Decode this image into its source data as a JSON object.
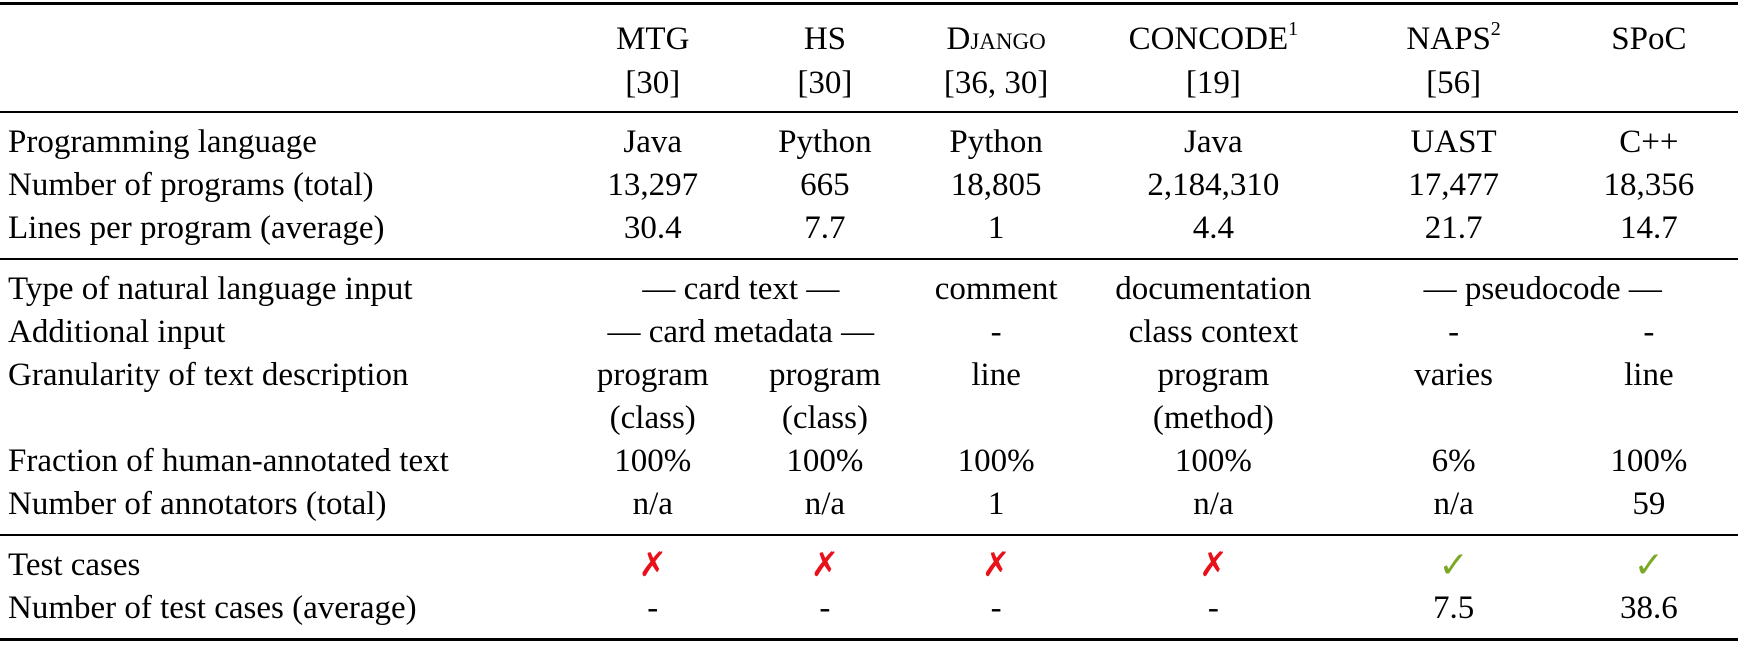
{
  "columns": [
    {
      "name": "MTG",
      "ref": "[30]",
      "sup": ""
    },
    {
      "name": "HS",
      "ref": "[30]",
      "sup": ""
    },
    {
      "name": "Django",
      "ref": "[36, 30]",
      "sup": ""
    },
    {
      "name": "CONCODE",
      "ref": "[19]",
      "sup": "1"
    },
    {
      "name": "NAPS",
      "ref": "[56]",
      "sup": "2"
    },
    {
      "name": "SPoC",
      "ref": "",
      "sup": ""
    }
  ],
  "rows": {
    "lang": {
      "label": "Programming language",
      "values": [
        "Java",
        "Python",
        "Python",
        "Java",
        "UAST",
        "C++"
      ]
    },
    "num_programs": {
      "label": "Number of programs (total)",
      "values": [
        "13,297",
        "665",
        "18,805",
        "2,184,310",
        "17,477",
        "18,356"
      ]
    },
    "lines": {
      "label": "Lines per program (average)",
      "values": [
        "30.4",
        "7.7",
        "1",
        "4.4",
        "21.7",
        "14.7"
      ]
    },
    "nl_input": {
      "label": "Type of natural language input",
      "mtg_hs": "— card text —",
      "django": "comment",
      "concode": "documentation",
      "naps_spoc": "— pseudocode —"
    },
    "additional": {
      "label": "Additional input",
      "mtg_hs": "— card metadata —",
      "django": "-",
      "concode": "class context",
      "naps": "-",
      "spoc": "-"
    },
    "granularity": {
      "label": "Granularity of text description",
      "values_line1": [
        "program",
        "program",
        "line",
        "program",
        "varies",
        "line"
      ],
      "values_line2": [
        "(class)",
        "(class)",
        "",
        "(method)",
        "",
        ""
      ]
    },
    "fraction": {
      "label": "Fraction of human-annotated text",
      "values": [
        "100%",
        "100%",
        "100%",
        "100%",
        "6%",
        "100%"
      ]
    },
    "annotators": {
      "label": "Number of annotators (total)",
      "values": [
        "n/a",
        "n/a",
        "1",
        "n/a",
        "n/a",
        "59"
      ]
    },
    "test_cases": {
      "label": "Test cases",
      "values": [
        "✗",
        "✗",
        "✗",
        "✗",
        "✓",
        "✓"
      ]
    },
    "num_tests": {
      "label": "Number of test cases (average)",
      "values": [
        "-",
        "-",
        "-",
        "-",
        "7.5",
        "38.6"
      ]
    }
  },
  "colors": {
    "cross": "#e8101a",
    "check": "#7aa827"
  }
}
